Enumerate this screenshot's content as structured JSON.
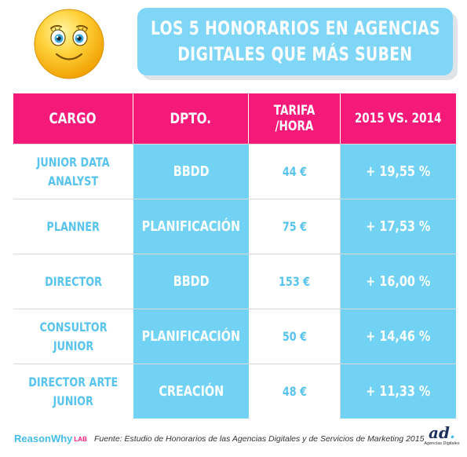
{
  "title": {
    "line1": "LOS 5 HONORARIOS EN AGENCIAS",
    "line2": "DIGITALES QUE MÁS SUBEN"
  },
  "table": {
    "headers": [
      "CARGO",
      "DPTO.",
      "TARIFA /HORA",
      "2015 VS. 2014"
    ],
    "rows": [
      {
        "cargo_line1": "JUNIOR DATA",
        "cargo_line2": "ANALYST",
        "dpto": "BBDD",
        "tarifa": "44 €",
        "variacion": "+ 19,55 %"
      },
      {
        "cargo_line1": "PLANNER",
        "cargo_line2": "",
        "dpto": "PLANIFICACIÓN",
        "tarifa": "75 €",
        "variacion": "+ 17,53 %"
      },
      {
        "cargo_line1": "DIRECTOR",
        "cargo_line2": "",
        "dpto": "BBDD",
        "tarifa": "153 €",
        "variacion": "+ 16,00 %"
      },
      {
        "cargo_line1": "CONSULTOR JUNIOR",
        "cargo_line2": "",
        "dpto": "PLANIFICACIÓN",
        "tarifa": "50 €",
        "variacion": "+ 14,46 %"
      },
      {
        "cargo_line1": "DIRECTOR ARTE",
        "cargo_line2": "JUNIOR",
        "dpto": "CREACIÓN",
        "tarifa": "48 €",
        "variacion": "+ 11,33 %"
      }
    ]
  },
  "footer": {
    "brand": "ReasonWhy",
    "brand_suffix": "LAB",
    "source": "Fuente: Estudio de Honorarios de las Agencias Digitales y de Servicios de Marketing 2015",
    "logo_text": "ad",
    "logo_dot": ".",
    "logo_sub": "Agencias Digitales"
  },
  "colors": {
    "header_pink": "#f5197a",
    "accent_blue": "#71d2f4",
    "text_blue": "#58c4ee",
    "banner_blue": "#7fd6f7"
  },
  "icons": [
    "smiley-face-icon"
  ]
}
